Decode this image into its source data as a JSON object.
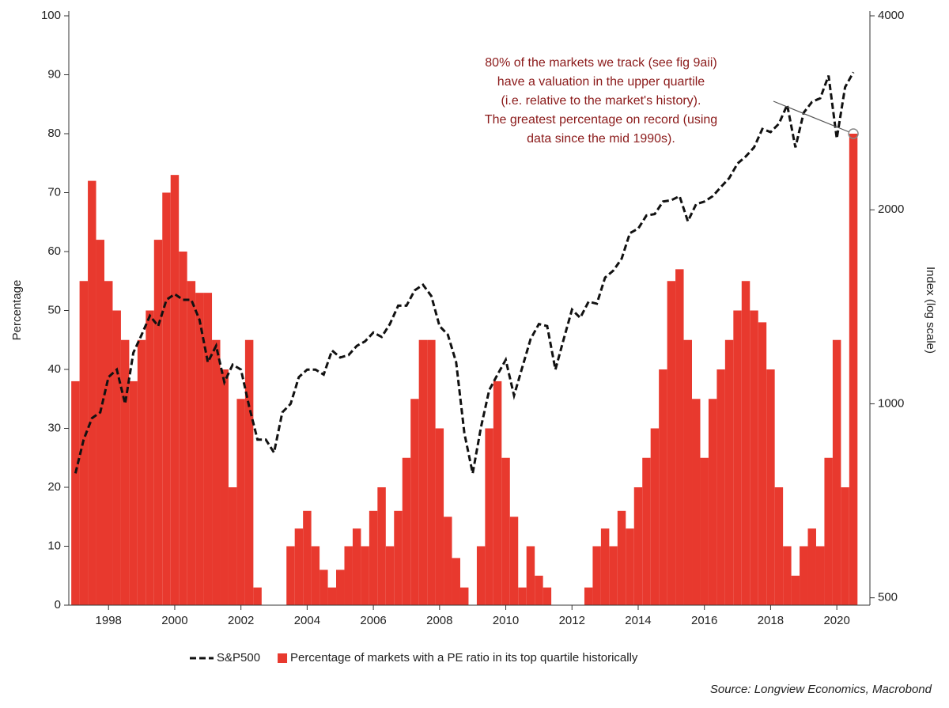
{
  "chart_data": {
    "type": "bar-line",
    "annotation": [
      "80% of the markets we track (see fig 9aii)",
      "have a valuation in the upper quartile",
      "(i.e. relative to the market's history).",
      "The greatest percentage on record (using",
      "data since the mid 1990s)."
    ],
    "source": "Source: Longview Economics, Macrobond",
    "ylabel": "Percentage",
    "y2label": "Index (log scale)",
    "xlim": [
      1996.8,
      2021.0
    ],
    "xticks": [
      1998,
      2000,
      2002,
      2004,
      2006,
      2008,
      2010,
      2012,
      2014,
      2016,
      2018,
      2020
    ],
    "ylim": [
      0,
      100
    ],
    "yticks": [
      0,
      10,
      20,
      30,
      40,
      50,
      60,
      70,
      80,
      90,
      100
    ],
    "y2lim": [
      487,
      4000
    ],
    "y2ticks": [
      500,
      1000,
      2000,
      4000
    ],
    "y2log": true,
    "x": [
      1997,
      1997.25,
      1997.5,
      1997.75,
      1998,
      1998.25,
      1998.5,
      1998.75,
      1999,
      1999.25,
      1999.5,
      1999.75,
      2000,
      2000.25,
      2000.5,
      2000.75,
      2001,
      2001.25,
      2001.5,
      2001.75,
      2002,
      2002.25,
      2002.5,
      2002.75,
      2003,
      2003.25,
      2003.5,
      2003.75,
      2004,
      2004.25,
      2004.5,
      2004.75,
      2005,
      2005.25,
      2005.5,
      2005.75,
      2006,
      2006.25,
      2006.5,
      2006.75,
      2007,
      2007.25,
      2007.5,
      2007.75,
      2008,
      2008.25,
      2008.5,
      2008.75,
      2009,
      2009.25,
      2009.5,
      2009.75,
      2010,
      2010.25,
      2010.5,
      2010.75,
      2011,
      2011.25,
      2011.5,
      2011.75,
      2012,
      2012.25,
      2012.5,
      2012.75,
      2013,
      2013.25,
      2013.5,
      2013.75,
      2014,
      2014.25,
      2014.5,
      2014.75,
      2015,
      2015.25,
      2015.5,
      2015.75,
      2016,
      2016.25,
      2016.5,
      2016.75,
      2017,
      2017.25,
      2017.5,
      2017.75,
      2018,
      2018.25,
      2018.5,
      2018.75,
      2019,
      2019.25,
      2019.5,
      2019.75,
      2020,
      2020.25,
      2020.5
    ],
    "series": [
      {
        "name": "Percentage of markets with a PE ratio in its top quartile historically",
        "kind": "bar",
        "color": "#e8392e",
        "values": [
          38,
          55,
          72,
          62,
          55,
          50,
          45,
          38,
          45,
          50,
          62,
          70,
          73,
          60,
          55,
          53,
          53,
          45,
          40,
          20,
          35,
          45,
          3,
          0,
          0,
          0,
          10,
          13,
          16,
          10,
          6,
          3,
          6,
          10,
          13,
          10,
          16,
          20,
          10,
          16,
          25,
          35,
          45,
          45,
          30,
          15,
          8,
          3,
          0,
          10,
          30,
          38,
          25,
          15,
          3,
          10,
          5,
          3,
          0,
          0,
          0,
          0,
          3,
          10,
          13,
          10,
          16,
          13,
          20,
          25,
          30,
          40,
          55,
          57,
          45,
          35,
          25,
          35,
          40,
          45,
          50,
          55,
          50,
          48,
          40,
          20,
          10,
          5,
          10,
          13,
          10,
          25,
          45,
          20,
          80
        ]
      },
      {
        "name": "S&P500",
        "kind": "line",
        "axis": "y2",
        "color": "#111111",
        "values": [
          780,
          880,
          950,
          970,
          1100,
          1130,
          1000,
          1200,
          1280,
          1370,
          1320,
          1450,
          1480,
          1450,
          1450,
          1350,
          1160,
          1230,
          1080,
          1150,
          1130,
          990,
          880,
          880,
          840,
          970,
          1000,
          1100,
          1130,
          1130,
          1110,
          1210,
          1180,
          1190,
          1230,
          1250,
          1290,
          1270,
          1330,
          1420,
          1420,
          1500,
          1530,
          1470,
          1320,
          1280,
          1160,
          900,
          780,
          920,
          1050,
          1110,
          1170,
          1030,
          1140,
          1260,
          1330,
          1320,
          1130,
          1260,
          1400,
          1360,
          1440,
          1430,
          1570,
          1610,
          1680,
          1840,
          1870,
          1960,
          1970,
          2060,
          2070,
          2100,
          1920,
          2040,
          2060,
          2100,
          2170,
          2240,
          2360,
          2420,
          2500,
          2670,
          2640,
          2720,
          2910,
          2500,
          2830,
          2940,
          2980,
          3230,
          2580,
          3100,
          3270
        ]
      }
    ]
  }
}
